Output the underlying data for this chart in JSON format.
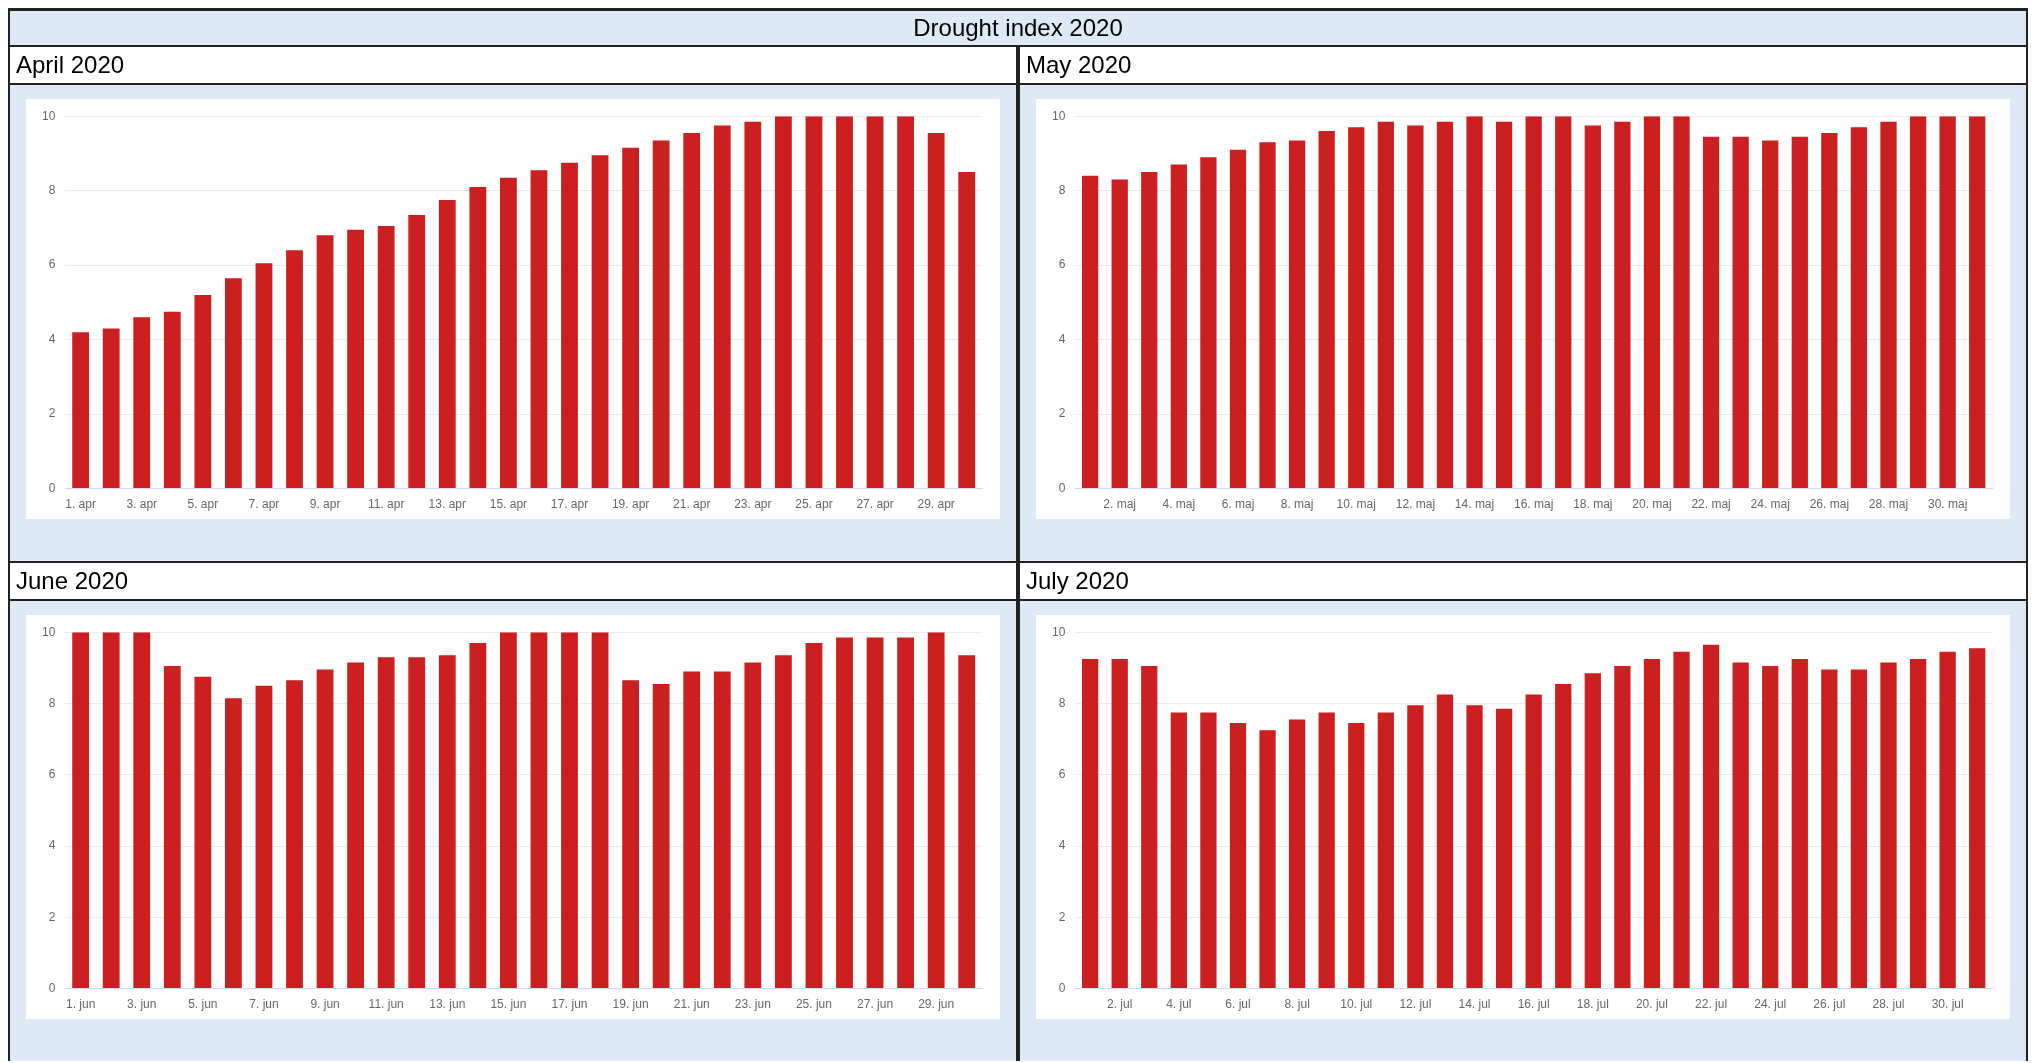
{
  "chart_data": [
    {
      "type": "other",
      "title": "Drought index 2020"
    },
    {
      "type": "bar",
      "title": "April 2020",
      "categories": [
        "1. apr",
        null,
        "3. apr",
        null,
        "5. apr",
        null,
        "7. apr",
        null,
        "9. apr",
        null,
        "11. apr",
        null,
        "13. apr",
        null,
        "15. apr",
        null,
        "17. apr",
        null,
        "19. apr",
        null,
        "21. apr",
        null,
        "23. apr",
        null,
        "25. apr",
        null,
        "27. apr",
        null,
        "29. apr",
        null
      ],
      "values": [
        4.2,
        4.3,
        4.6,
        4.75,
        5.2,
        5.65,
        6.05,
        6.4,
        6.8,
        6.95,
        7.05,
        7.35,
        7.75,
        8.1,
        8.35,
        8.55,
        8.75,
        8.95,
        9.15,
        9.35,
        9.55,
        9.75,
        9.85,
        10,
        10,
        10,
        10,
        10,
        9.55,
        8.5
      ],
      "color": "#cc1f1f",
      "ylim": [
        0,
        10
      ],
      "yticks": [
        0,
        2,
        4,
        6,
        8,
        10
      ],
      "grid": "y"
    },
    {
      "type": "bar",
      "title": "May 2020",
      "categories": [
        null,
        "2. maj",
        null,
        "4. maj",
        null,
        "6. maj",
        null,
        "8. maj",
        null,
        "10. maj",
        null,
        "12. maj",
        null,
        "14. maj",
        null,
        "16. maj",
        null,
        "18. maj",
        null,
        "20. maj",
        null,
        "22. maj",
        null,
        "24. maj",
        null,
        "26. maj",
        null,
        "28. maj",
        null,
        "30. maj",
        null
      ],
      "values": [
        8.4,
        8.3,
        8.5,
        8.7,
        8.9,
        9.1,
        9.3,
        9.35,
        9.6,
        9.7,
        9.85,
        9.75,
        9.85,
        10,
        9.85,
        10,
        10,
        9.75,
        9.85,
        10,
        10,
        9.45,
        9.45,
        9.35,
        9.45,
        9.55,
        9.7,
        9.85,
        10,
        10,
        10
      ],
      "color": "#cc1f1f",
      "ylim": [
        0,
        10
      ],
      "yticks": [
        0,
        2,
        4,
        6,
        8,
        10
      ],
      "grid": "y"
    },
    {
      "type": "bar",
      "title": "June 2020",
      "categories": [
        "1. jun",
        null,
        "3. jun",
        null,
        "5. jun",
        null,
        "7. jun",
        null,
        "9. jun",
        null,
        "11. jun",
        null,
        "13. jun",
        null,
        "15. jun",
        null,
        "17. jun",
        null,
        "19. jun",
        null,
        "21. jun",
        null,
        "23. jun",
        null,
        "25. jun",
        null,
        "27. jun",
        null,
        "29. jun",
        null
      ],
      "values": [
        10,
        10,
        10,
        9.05,
        8.75,
        8.15,
        8.5,
        8.65,
        8.95,
        9.15,
        9.3,
        9.3,
        9.35,
        9.7,
        10,
        10,
        10,
        10,
        8.65,
        8.55,
        8.9,
        8.9,
        9.15,
        9.35,
        9.7,
        9.85,
        9.85,
        9.85,
        10,
        9.35
      ],
      "color": "#cc1f1f",
      "ylim": [
        0,
        10
      ],
      "yticks": [
        0,
        2,
        4,
        6,
        8,
        10
      ],
      "grid": "y"
    },
    {
      "type": "bar",
      "title": "July 2020",
      "categories": [
        null,
        "2. jul",
        null,
        "4. jul",
        null,
        "6. jul",
        null,
        "8. jul",
        null,
        "10. jul",
        null,
        "12. jul",
        null,
        "14. jul",
        null,
        "16. jul",
        null,
        "18. jul",
        null,
        "20. jul",
        null,
        "22. jul",
        null,
        "24. jul",
        null,
        "26. jul",
        null,
        "28. jul",
        null,
        "30. jul",
        null
      ],
      "values": [
        9.25,
        9.25,
        9.05,
        7.75,
        7.75,
        7.45,
        7.25,
        7.55,
        7.75,
        7.45,
        7.75,
        7.95,
        8.25,
        7.95,
        7.85,
        8.25,
        8.55,
        8.85,
        9.05,
        9.25,
        9.45,
        9.65,
        9.15,
        9.05,
        9.25,
        8.95,
        8.95,
        9.15,
        9.25,
        9.45,
        9.55
      ],
      "color": "#cc1f1f",
      "ylim": [
        0,
        10
      ],
      "yticks": [
        0,
        2,
        4,
        6,
        8,
        10
      ],
      "grid": "y"
    }
  ]
}
